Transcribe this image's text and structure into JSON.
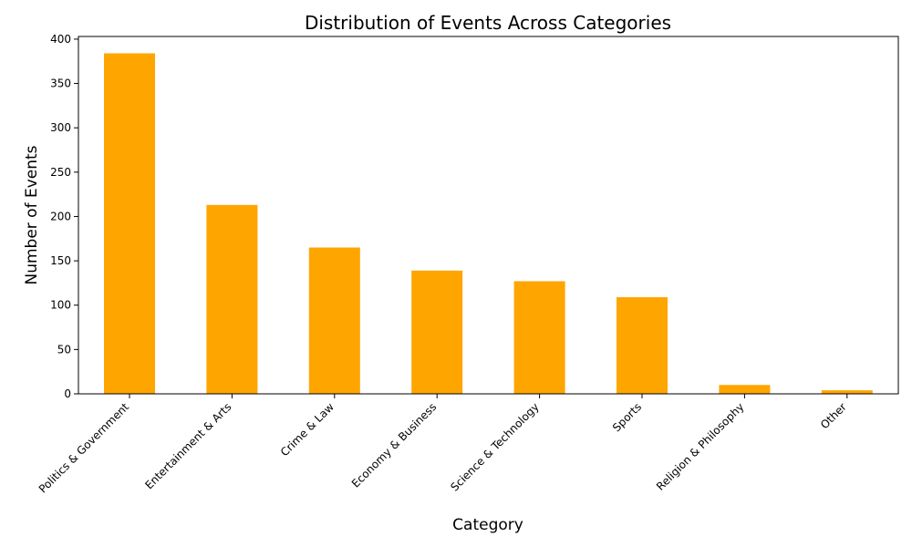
{
  "chart_data": {
    "type": "bar",
    "title": "Distribution of Events Across Categories",
    "xlabel": "Category",
    "ylabel": "Number of Events",
    "categories": [
      "Politics & Government",
      "Entertainment & Arts",
      "Crime & Law",
      "Economy & Business",
      "Science & Technology",
      "Sports",
      "Religion & Philosophy",
      "Other"
    ],
    "values": [
      384,
      213,
      165,
      139,
      127,
      109,
      10,
      4
    ],
    "ylim": [
      0,
      403
    ],
    "yticks": [
      0,
      50,
      100,
      150,
      200,
      250,
      300,
      350,
      400
    ],
    "bar_color": "#FFA500",
    "grid": false,
    "legend": "none"
  }
}
